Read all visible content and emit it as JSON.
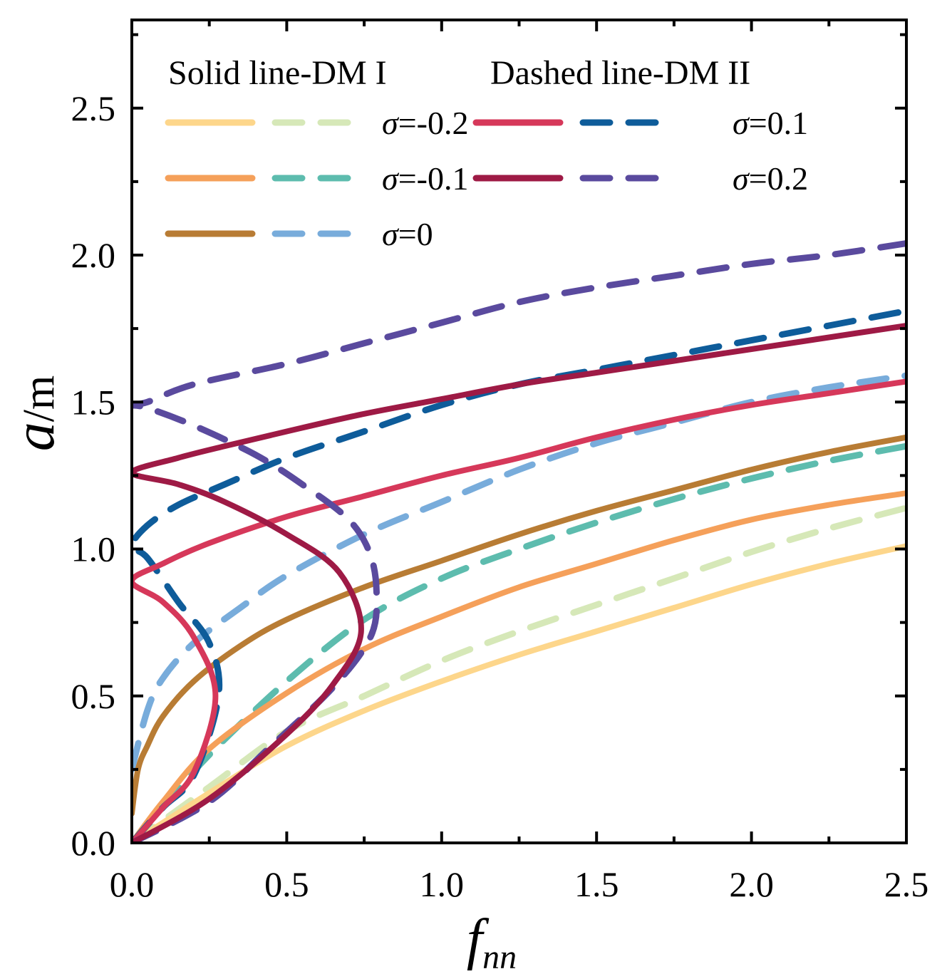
{
  "chart_data": {
    "type": "line",
    "title": "",
    "xlabel": "f",
    "xlabel_subscript": "nn",
    "ylabel": "a",
    "ylabel_unit": "/m",
    "xlim": [
      0,
      2.5
    ],
    "ylim": [
      0,
      2.8
    ],
    "xticks": [
      "0.0",
      "0.5",
      "1.0",
      "1.5",
      "2.0",
      "2.5"
    ],
    "yticks": [
      "0.0",
      "0.5",
      "1.0",
      "1.5",
      "2.0",
      "2.5"
    ],
    "grid": false,
    "legend_header_solid": "Solid line-DM I",
    "legend_header_dashed": "Dashed line-DM II",
    "legend_position": "top",
    "series": [
      {
        "name": "σ=-0.2",
        "label_sigma": "σ",
        "label_value": "=-0.2",
        "solid_color": "#FDD68B",
        "dashed_color": "#D6E8B8",
        "solid": [
          [
            0,
            0
          ],
          [
            0.25,
            0.17
          ],
          [
            0.5,
            0.33
          ],
          [
            0.75,
            0.45
          ],
          [
            1.0,
            0.55
          ],
          [
            1.25,
            0.64
          ],
          [
            1.5,
            0.72
          ],
          [
            1.75,
            0.8
          ],
          [
            2.0,
            0.88
          ],
          [
            2.25,
            0.95
          ],
          [
            2.5,
            1.01
          ]
        ],
        "dashed": [
          [
            0,
            0
          ],
          [
            0.25,
            0.19
          ],
          [
            0.5,
            0.38
          ],
          [
            0.75,
            0.5
          ],
          [
            1.0,
            0.62
          ],
          [
            1.25,
            0.72
          ],
          [
            1.5,
            0.81
          ],
          [
            1.75,
            0.9
          ],
          [
            2.0,
            0.99
          ],
          [
            2.25,
            1.07
          ],
          [
            2.5,
            1.14
          ]
        ]
      },
      {
        "name": "σ=-0.1",
        "label_sigma": "σ",
        "label_value": "=-0.1",
        "solid_color": "#F5A05A",
        "dashed_color": "#5DBCAE",
        "solid": [
          [
            0,
            0
          ],
          [
            0.1,
            0.14
          ],
          [
            0.25,
            0.32
          ],
          [
            0.5,
            0.51
          ],
          [
            0.75,
            0.66
          ],
          [
            1.0,
            0.77
          ],
          [
            1.25,
            0.87
          ],
          [
            1.5,
            0.95
          ],
          [
            1.75,
            1.03
          ],
          [
            2.0,
            1.1
          ],
          [
            2.25,
            1.15
          ],
          [
            2.5,
            1.19
          ]
        ],
        "dashed": [
          [
            0,
            0
          ],
          [
            0.1,
            0.12
          ],
          [
            0.25,
            0.3
          ],
          [
            0.5,
            0.55
          ],
          [
            0.75,
            0.76
          ],
          [
            1.0,
            0.9
          ],
          [
            1.25,
            1.0
          ],
          [
            1.5,
            1.09
          ],
          [
            1.75,
            1.17
          ],
          [
            2.0,
            1.24
          ],
          [
            2.25,
            1.3
          ],
          [
            2.5,
            1.35
          ]
        ]
      },
      {
        "name": "σ=0",
        "label_sigma": "σ",
        "label_value": "=0",
        "solid_color": "#B87C34",
        "dashed_color": "#78ACDB",
        "solid": [
          [
            0,
            0.1
          ],
          [
            0.02,
            0.25
          ],
          [
            0.05,
            0.33
          ],
          [
            0.1,
            0.43
          ],
          [
            0.2,
            0.55
          ],
          [
            0.35,
            0.67
          ],
          [
            0.5,
            0.76
          ],
          [
            0.75,
            0.87
          ],
          [
            1.0,
            0.96
          ],
          [
            1.25,
            1.05
          ],
          [
            1.5,
            1.13
          ],
          [
            1.75,
            1.2
          ],
          [
            2.0,
            1.27
          ],
          [
            2.25,
            1.33
          ],
          [
            2.5,
            1.38
          ]
        ],
        "dashed": [
          [
            0,
            0.25
          ],
          [
            0.05,
            0.45
          ],
          [
            0.1,
            0.56
          ],
          [
            0.2,
            0.68
          ],
          [
            0.35,
            0.8
          ],
          [
            0.5,
            0.91
          ],
          [
            0.75,
            1.05
          ],
          [
            1.0,
            1.16
          ],
          [
            1.25,
            1.27
          ],
          [
            1.5,
            1.36
          ],
          [
            1.75,
            1.43
          ],
          [
            2.0,
            1.5
          ],
          [
            2.25,
            1.55
          ],
          [
            2.5,
            1.59
          ]
        ]
      },
      {
        "name": "σ=0.1",
        "label_sigma": "σ",
        "label_value": "=0.1",
        "solid_color": "#D6385A",
        "dashed_color": "#0E5C9A",
        "solid": [
          [
            0,
            0
          ],
          [
            0.1,
            0.12
          ],
          [
            0.2,
            0.24
          ],
          [
            0.27,
            0.5
          ],
          [
            0.2,
            0.7
          ],
          [
            0.1,
            0.82
          ],
          [
            0,
            0.89
          ],
          [
            0.1,
            0.95
          ],
          [
            0.25,
            1.02
          ],
          [
            0.5,
            1.11
          ],
          [
            0.75,
            1.18
          ],
          [
            1.0,
            1.25
          ],
          [
            1.25,
            1.31
          ],
          [
            1.5,
            1.38
          ],
          [
            1.75,
            1.44
          ],
          [
            2.0,
            1.49
          ],
          [
            2.25,
            1.53
          ],
          [
            2.5,
            1.57
          ]
        ],
        "dashed": [
          [
            0,
            0
          ],
          [
            0.1,
            0.12
          ],
          [
            0.2,
            0.23
          ],
          [
            0.28,
            0.5
          ],
          [
            0.25,
            0.68
          ],
          [
            0.15,
            0.82
          ],
          [
            0.05,
            0.97
          ],
          [
            0,
            1.01
          ],
          [
            0.05,
            1.08
          ],
          [
            0.15,
            1.15
          ],
          [
            0.3,
            1.22
          ],
          [
            0.5,
            1.31
          ],
          [
            0.75,
            1.4
          ],
          [
            1.0,
            1.49
          ],
          [
            1.25,
            1.56
          ],
          [
            1.5,
            1.61
          ],
          [
            1.75,
            1.66
          ],
          [
            2.0,
            1.71
          ],
          [
            2.25,
            1.76
          ],
          [
            2.5,
            1.81
          ]
        ]
      },
      {
        "name": "σ=0.2",
        "label_sigma": "σ",
        "label_value": "=0.2",
        "solid_color": "#9E1A45",
        "dashed_color": "#5A4A9E",
        "solid": [
          [
            0,
            0
          ],
          [
            0.25,
            0.15
          ],
          [
            0.5,
            0.37
          ],
          [
            0.65,
            0.54
          ],
          [
            0.74,
            0.72
          ],
          [
            0.67,
            0.92
          ],
          [
            0.5,
            1.05
          ],
          [
            0.3,
            1.16
          ],
          [
            0.15,
            1.22
          ],
          [
            0,
            1.26
          ],
          [
            0.15,
            1.31
          ],
          [
            0.3,
            1.35
          ],
          [
            0.5,
            1.4
          ],
          [
            0.75,
            1.46
          ],
          [
            1.0,
            1.51
          ],
          [
            1.25,
            1.56
          ],
          [
            1.5,
            1.6
          ],
          [
            1.75,
            1.64
          ],
          [
            2.0,
            1.68
          ],
          [
            2.25,
            1.72
          ],
          [
            2.5,
            1.76
          ]
        ],
        "dashed": [
          [
            0,
            0
          ],
          [
            0.25,
            0.14
          ],
          [
            0.45,
            0.33
          ],
          [
            0.65,
            0.53
          ],
          [
            0.77,
            0.7
          ],
          [
            0.79,
            0.84
          ],
          [
            0.77,
            0.98
          ],
          [
            0.7,
            1.1
          ],
          [
            0.55,
            1.22
          ],
          [
            0.4,
            1.32
          ],
          [
            0.2,
            1.42
          ],
          [
            0.05,
            1.48
          ],
          [
            0,
            1.49
          ],
          [
            0.05,
            1.5
          ],
          [
            0.2,
            1.56
          ],
          [
            0.5,
            1.63
          ],
          [
            0.75,
            1.7
          ],
          [
            1.0,
            1.77
          ],
          [
            1.25,
            1.84
          ],
          [
            1.5,
            1.89
          ],
          [
            1.75,
            1.93
          ],
          [
            2.0,
            1.97
          ],
          [
            2.25,
            2.0
          ],
          [
            2.5,
            2.04
          ]
        ]
      }
    ]
  }
}
